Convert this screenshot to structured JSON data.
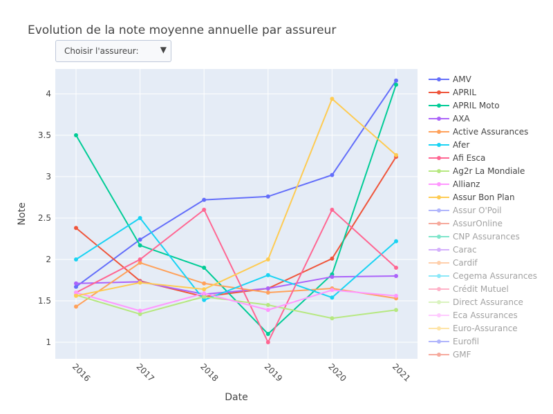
{
  "title": "Evolution de la note moyenne annuelle par assureur",
  "dropdown": {
    "label": "Choisir l'assureur:",
    "arrow_icon": "triangle-down-icon"
  },
  "chart_data": {
    "type": "line",
    "title": "Evolution de la note moyenne annuelle par assureur",
    "xlabel": "Date",
    "ylabel": "Note",
    "x": [
      "2016",
      "2017",
      "2018",
      "2019",
      "2020",
      "2021"
    ],
    "y_ticks": [
      "1",
      "1.5",
      "2",
      "2.5",
      "3",
      "3.5",
      "4"
    ],
    "ylim": [
      0.8,
      4.3
    ],
    "grid": true,
    "legend_position": "right",
    "series": [
      {
        "name": "AMV",
        "color": "#636efa",
        "visible": true,
        "values": [
          1.67,
          2.24,
          2.72,
          2.76,
          3.02,
          4.16
        ]
      },
      {
        "name": "APRIL",
        "color": "#ef553b",
        "visible": true,
        "values": [
          2.38,
          1.74,
          1.55,
          1.65,
          2.01,
          3.24
        ]
      },
      {
        "name": "APRIL Moto",
        "color": "#00cc96",
        "visible": true,
        "values": [
          3.5,
          2.17,
          1.9,
          1.1,
          1.82,
          4.11
        ]
      },
      {
        "name": "AXA",
        "color": "#ab63fa",
        "visible": true,
        "values": [
          1.71,
          1.73,
          1.58,
          1.65,
          1.79,
          1.8
        ]
      },
      {
        "name": "Active Assurances",
        "color": "#ffa15a",
        "visible": true,
        "values": [
          1.43,
          1.96,
          1.71,
          1.6,
          1.65,
          1.53
        ]
      },
      {
        "name": "Afer",
        "color": "#19d3f3",
        "visible": true,
        "values": [
          2.0,
          2.5,
          1.51,
          1.81,
          1.54,
          2.22
        ]
      },
      {
        "name": "Afi Esca",
        "color": "#ff6692",
        "visible": true,
        "values": [
          1.6,
          2.0,
          2.6,
          1.0,
          2.6,
          1.9
        ]
      },
      {
        "name": "Ag2r La Mondiale",
        "color": "#b6e880",
        "visible": true,
        "values": [
          1.57,
          1.34,
          1.55,
          1.45,
          1.29,
          1.39
        ]
      },
      {
        "name": "Allianz",
        "color": "#ff97ff",
        "visible": true,
        "values": [
          1.6,
          1.38,
          1.59,
          1.39,
          1.63,
          1.56
        ]
      },
      {
        "name": "Assur Bon Plan",
        "color": "#fecb52",
        "visible": true,
        "values": [
          1.56,
          1.72,
          1.64,
          2.0,
          3.94,
          3.26
        ]
      },
      {
        "name": "Assur O'Poil",
        "color": "#636efa",
        "visible": false
      },
      {
        "name": "AssurOnline",
        "color": "#ef553b",
        "visible": false
      },
      {
        "name": "CNP Assurances",
        "color": "#00cc96",
        "visible": false
      },
      {
        "name": "Carac",
        "color": "#ab63fa",
        "visible": false
      },
      {
        "name": "Cardif",
        "color": "#ffa15a",
        "visible": false
      },
      {
        "name": "Cegema Assurances",
        "color": "#19d3f3",
        "visible": false
      },
      {
        "name": "Crédit Mutuel",
        "color": "#ff6692",
        "visible": false
      },
      {
        "name": "Direct Assurance",
        "color": "#b6e880",
        "visible": false
      },
      {
        "name": "Eca Assurances",
        "color": "#ff97ff",
        "visible": false
      },
      {
        "name": "Euro-Assurance",
        "color": "#fecb52",
        "visible": false
      },
      {
        "name": "Eurofil",
        "color": "#636efa",
        "visible": false
      },
      {
        "name": "GMF",
        "color": "#ef553b",
        "visible": false
      }
    ]
  }
}
